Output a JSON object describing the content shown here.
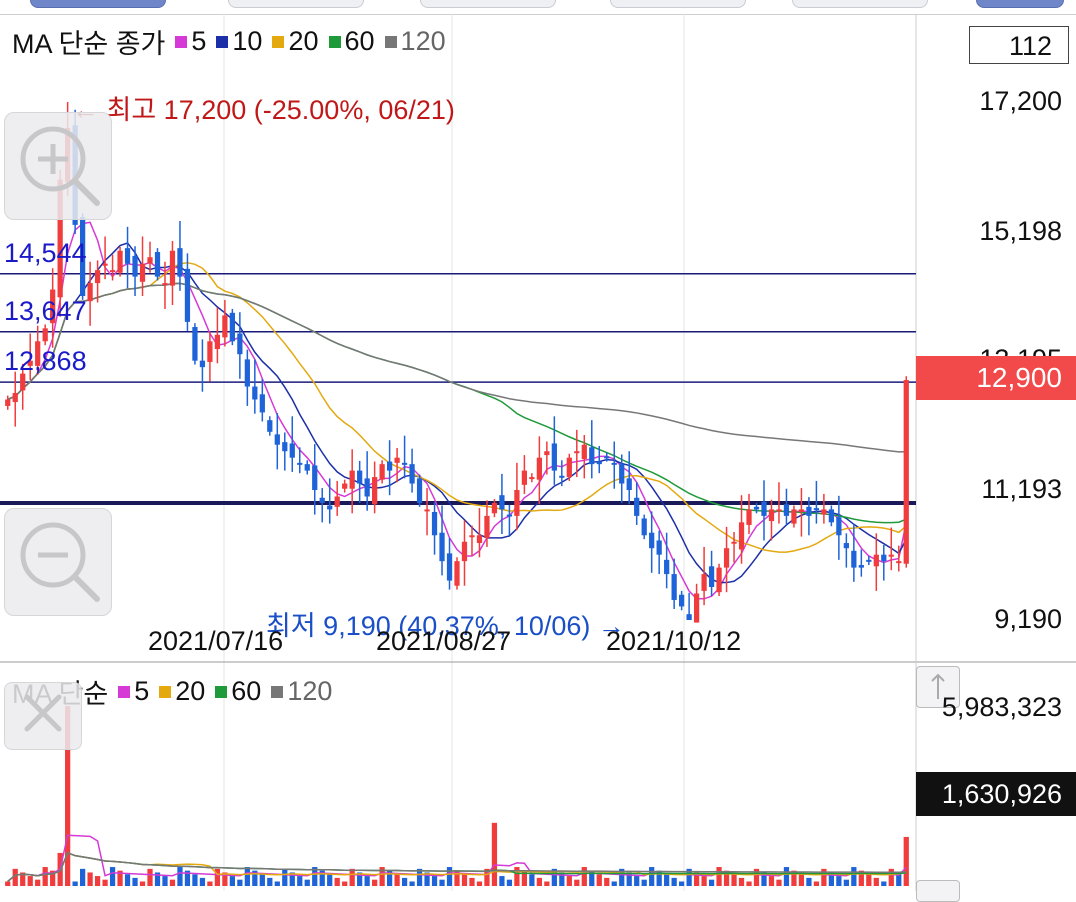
{
  "price_legend": {
    "title": "MA 단순 종가",
    "items": [
      {
        "label": "5",
        "color": "#d63ad6"
      },
      {
        "label": "10",
        "color": "#1b2fa8"
      },
      {
        "label": "20",
        "color": "#e3a90f"
      },
      {
        "label": "60",
        "color": "#1f9a3a"
      },
      {
        "label": "120",
        "color": "#777777"
      }
    ]
  },
  "period_box": "112",
  "price_axis": {
    "ticks": [
      "17,200",
      "15,198",
      "13,195",
      "11,193",
      "9,190"
    ]
  },
  "current_price": "12,900",
  "max_annotation": "← 최고 17,200 (-25.00%, 06/21)",
  "min_annotation": "최저 9,190 (40.37%, 10/06) →",
  "horizontal_lines": [
    {
      "label": "14,544",
      "value": 14544
    },
    {
      "label": "13,647",
      "value": 13647
    },
    {
      "label": "12,868",
      "value": 12868
    }
  ],
  "support_line": {
    "value": 11000
  },
  "x_dates": [
    "2021/07/16",
    "2021/08/27",
    "2021/10/12"
  ],
  "volume_legend": {
    "title": "MA 단순",
    "items": [
      {
        "label": "5",
        "color": "#d63ad6"
      },
      {
        "label": "20",
        "color": "#e3a90f"
      },
      {
        "label": "60",
        "color": "#1f9a3a"
      },
      {
        "label": "120",
        "color": "#777777"
      }
    ]
  },
  "volume_axis": {
    "max": "5,983,323"
  },
  "current_volume": "1,630,926",
  "colors": {
    "up": "#f03c3c",
    "down": "#1e63d8",
    "ma5": "#d63ad6",
    "ma10": "#1b2fa8",
    "ma20": "#e3a90f",
    "ma60": "#1f9a3a",
    "ma120": "#777777"
  },
  "chart_data": {
    "type": "candlestick",
    "y_range": [
      9190,
      17200
    ],
    "max": {
      "value": 17200,
      "date": "06/21",
      "change": "-25.00%"
    },
    "min": {
      "value": 9190,
      "date": "10/06",
      "change": "40.37%"
    },
    "last_close": 12900,
    "last_volume": 1630926,
    "volume_max": 5983323
  }
}
